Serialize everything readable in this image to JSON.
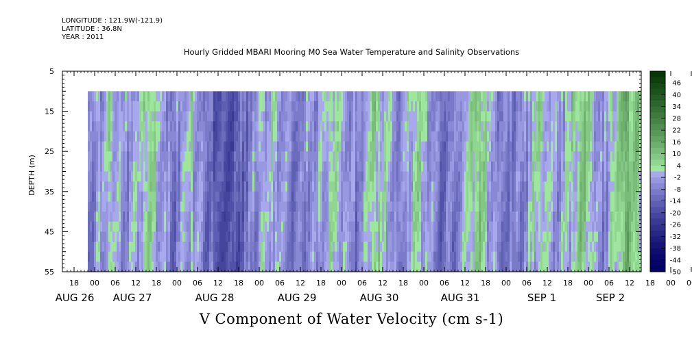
{
  "header": {
    "longitude": "LONGITUDE : 121.9W(-121.9)",
    "latitude": "LATITUDE : 36.8N",
    "year": "YEAR : 2011"
  },
  "chart_data": {
    "type": "heatmap",
    "title": "Hourly Gridded MBARI Mooring M0 Sea Water Temperature and Salinity Observations",
    "xlabel": "V Component of Water Velocity (cm s-1)",
    "ylabel": "DEPTH (m)",
    "y_range": [
      5,
      55
    ],
    "y_inverted": true,
    "y_ticks": [
      "5",
      "15",
      "25",
      "35",
      "45",
      "55"
    ],
    "data_depth_range": [
      10,
      55
    ],
    "x_hour_ticks": [
      "18",
      "00",
      "06",
      "12",
      "18",
      "00",
      "06",
      "12",
      "18",
      "00",
      "06",
      "12",
      "18",
      "00",
      "06",
      "12",
      "18",
      "00",
      "06",
      "12",
      "18",
      "00",
      "06",
      "12",
      "18",
      "00",
      "06",
      "12",
      "18",
      "00",
      "06",
      "12"
    ],
    "x_date_labels": [
      "AUG 26",
      "AUG 27",
      "AUG 28",
      "AUG 29",
      "AUG 30",
      "AUG 31",
      "SEP  1",
      "SEP  2"
    ],
    "colorbar_labels": [
      "46",
      "40",
      "34",
      "28",
      "22",
      "16",
      "10",
      "4",
      "-2",
      "-8",
      "-14",
      "-20",
      "-26",
      "-32",
      "-38",
      "-44",
      "-50"
    ],
    "color_scale": {
      "min": -50,
      "max": 52,
      "step": 3,
      "negative_dark": "#000066",
      "negative_light": "#b0b0f4",
      "positive_light": "#a8f0a8",
      "positive_dark": "#003300"
    },
    "velocity_pattern_day_by_hour": [
      {
        "hour": 0,
        "v": -8
      },
      {
        "hour": 6,
        "v": 3
      },
      {
        "hour": 12,
        "v": -4
      },
      {
        "hour": 18,
        "v": 8
      },
      {
        "hour": 24,
        "v": -10
      },
      {
        "hour": 30,
        "v": 2
      },
      {
        "hour": 36,
        "v": -12
      },
      {
        "hour": 42,
        "v": -16
      },
      {
        "hour": 48,
        "v": -6
      },
      {
        "hour": 54,
        "v": 4
      },
      {
        "hour": 60,
        "v": -9
      },
      {
        "hour": 66,
        "v": -4
      },
      {
        "hour": 72,
        "v": 6
      },
      {
        "hour": 78,
        "v": -8
      },
      {
        "hour": 84,
        "v": 7
      },
      {
        "hour": 90,
        "v": -6
      },
      {
        "hour": 96,
        "v": 5
      },
      {
        "hour": 102,
        "v": -10
      },
      {
        "hour": 108,
        "v": -5
      },
      {
        "hour": 114,
        "v": 8
      },
      {
        "hour": 120,
        "v": -9
      },
      {
        "hour": 126,
        "v": -5
      },
      {
        "hour": 132,
        "v": 5
      },
      {
        "hour": 138,
        "v": -3
      },
      {
        "hour": 144,
        "v": 10
      },
      {
        "hour": 150,
        "v": -6
      },
      {
        "hour": 156,
        "v": 14
      },
      {
        "hour": 162,
        "v": 6
      },
      {
        "hour": 168,
        "v": 9
      },
      {
        "hour": 174,
        "v": -4
      },
      {
        "hour": 180,
        "v": 8
      },
      {
        "hour": 186,
        "v": 15
      },
      {
        "hour": 192,
        "v": 6
      }
    ]
  }
}
